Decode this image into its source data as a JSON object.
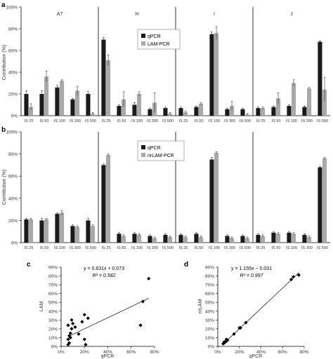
{
  "colors": {
    "qpcr": "#1a1a1a",
    "lam": "#a9a9a9",
    "axis": "#000000",
    "text": "#333333"
  },
  "chart_data": [
    {
      "panel": "a",
      "type": "bar",
      "ylabel": "Contribution (%)",
      "ylim": [
        0,
        100
      ],
      "yticks": [
        "0%",
        "20%",
        "40%",
        "60%",
        "80%",
        "100%"
      ],
      "groups": [
        "A7",
        "H",
        "I",
        "J"
      ],
      "categories": [
        "IS 25",
        "IS 50",
        "IS 100",
        "IS 300",
        "IS 500"
      ],
      "legend": "top-right of group H",
      "series": [
        {
          "name": "qPCR",
          "values": [
            [
              20,
              20,
              26,
              15,
              20
            ],
            [
              70,
              9,
              10,
              6,
              7
            ],
            [
              7,
              8,
              75,
              6,
              6
            ],
            [
              7,
              8,
              9,
              8,
              68
            ]
          ]
        },
        {
          "name": "LAM-PCR",
          "values": [
            [
              8,
              36,
              32,
              23,
              2
            ],
            [
              51,
              15,
              20,
              12,
              2
            ],
            [
              3,
              11,
              76,
              9,
              1
            ],
            [
              7,
              16,
              30,
              25,
              24
            ]
          ]
        }
      ],
      "errors": [
        [
          [
            3,
            3,
            2,
            1,
            2
          ],
          [
            2,
            1,
            2,
            1,
            1
          ],
          [
            1,
            1,
            2,
            1,
            1
          ],
          [
            1,
            1,
            1,
            1,
            1
          ]
        ],
        [
          [
            3,
            5,
            1,
            4,
            1
          ],
          [
            5,
            7,
            2,
            9,
            1
          ],
          [
            1,
            1,
            6,
            4,
            1
          ],
          [
            1,
            5,
            3,
            1,
            11
          ]
        ]
      ]
    },
    {
      "panel": "b",
      "type": "bar",
      "ylabel": "Contribution (%)",
      "ylim": [
        0,
        100
      ],
      "yticks": [
        "0%",
        "20%",
        "40%",
        "60%",
        "80%",
        "100%"
      ],
      "groups": [
        "A7",
        "H",
        "I",
        "J"
      ],
      "categories": [
        "IS 25",
        "IS 50",
        "IS 100",
        "IS 300",
        "IS 500"
      ],
      "legend": "top-right of group H",
      "series": [
        {
          "name": "qPCR",
          "values": [
            [
              21,
              20,
              26,
              15,
              20
            ],
            [
              70,
              8,
              8,
              6,
              7
            ],
            [
              7,
              8,
              75,
              6,
              6
            ],
            [
              7,
              9,
              9,
              7,
              68
            ]
          ]
        },
        {
          "name": "nrLAM-PCR",
          "values": [
            [
              21,
              21,
              27,
              14,
              15
            ],
            [
              79,
              6,
              7,
              4,
              5
            ],
            [
              5,
              5,
              81,
              4,
              4
            ],
            [
              6,
              8,
              8,
              5,
              76
            ]
          ]
        }
      ],
      "errors": [
        [
          [
            1,
            2,
            1,
            1,
            2
          ],
          [
            1,
            1,
            1,
            1,
            1
          ],
          [
            1,
            1,
            2,
            1,
            1
          ],
          [
            1,
            1,
            1,
            1,
            1
          ]
        ],
        [
          [
            1,
            1,
            2,
            1,
            1
          ],
          [
            1,
            1,
            1,
            1,
            1
          ],
          [
            1,
            1,
            1,
            1,
            1
          ],
          [
            1,
            1,
            1,
            1,
            1
          ]
        ]
      ]
    },
    {
      "panel": "c",
      "type": "scatter",
      "xlabel": "qPCR",
      "ylabel": "LAM",
      "xlim": [
        0,
        80
      ],
      "ylim": [
        0,
        90
      ],
      "xticks": [
        "0%",
        "20%",
        "40%",
        "60%",
        "80%"
      ],
      "yticks": [
        "0%",
        "10%",
        "20%",
        "30%",
        "40%",
        "50%",
        "60%",
        "70%",
        "80%",
        "90%"
      ],
      "equation": "y = 0.631x + 0.073",
      "r2": "R² = 0.582",
      "fit": {
        "slope": 0.631,
        "intercept": 7.3
      },
      "points": [
        [
          6,
          2
        ],
        [
          7,
          4
        ],
        [
          6,
          8
        ],
        [
          8,
          10
        ],
        [
          7,
          12
        ],
        [
          8,
          15
        ],
        [
          9,
          20
        ],
        [
          6,
          24
        ],
        [
          10,
          26
        ],
        [
          9,
          30
        ],
        [
          12,
          22
        ],
        [
          15,
          14
        ],
        [
          18,
          28
        ],
        [
          20,
          36
        ],
        [
          21,
          2
        ],
        [
          20,
          8
        ],
        [
          23,
          32
        ],
        [
          70,
          51
        ],
        [
          68,
          24
        ],
        [
          75,
          77
        ]
      ]
    },
    {
      "panel": "d",
      "type": "scatter",
      "xlabel": "qPCR",
      "ylabel": "nrLAM",
      "xlim": [
        0,
        80
      ],
      "ylim": [
        0,
        90
      ],
      "xticks": [
        "0%",
        "20%",
        "40%",
        "60%",
        "80%"
      ],
      "yticks": [
        "0%",
        "10%",
        "20%",
        "30%",
        "40%",
        "50%",
        "60%",
        "70%",
        "80%",
        "90%"
      ],
      "equation": "y = 1.155x − 0.031",
      "r2": "R² = 0.997",
      "fit": {
        "slope": 1.155,
        "intercept": -3.1
      },
      "points": [
        [
          5,
          3
        ],
        [
          6,
          4
        ],
        [
          7,
          5
        ],
        [
          8,
          6
        ],
        [
          6,
          5
        ],
        [
          9,
          7
        ],
        [
          8,
          8
        ],
        [
          15,
          14
        ],
        [
          20,
          21
        ],
        [
          21,
          21
        ],
        [
          26,
          27
        ],
        [
          68,
          76
        ],
        [
          70,
          79
        ],
        [
          75,
          81
        ]
      ]
    }
  ]
}
